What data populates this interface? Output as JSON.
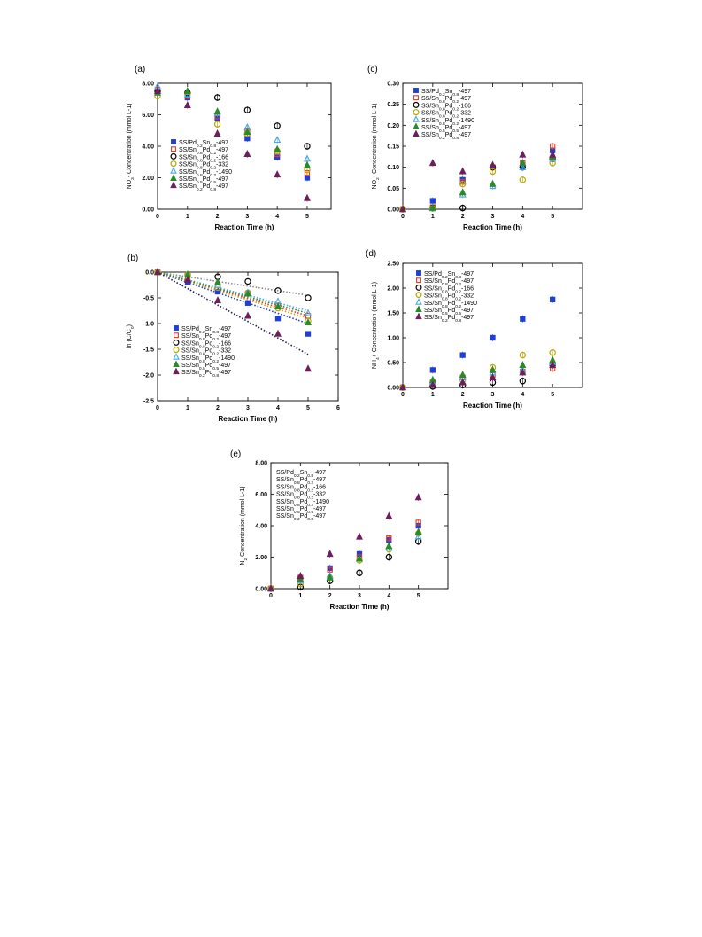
{
  "series_names": [
    "SS/Pd0.2Sn0.8-497",
    "SS/Sn0.8Pd0.2-497",
    "SS/Sn0.8Pd0.2-166",
    "SS/Sn0.8Pd0.2-332",
    "SS/Sn0.8Pd0.2-1490",
    "SS/Sn0.5Pd0.5-497",
    "SS/Sn0.2Pd0.8-497"
  ],
  "series_names_a": [
    "SS/Pd0.2Sn0.8-497",
    "SS/Sn0.8Pd0.2-497",
    "SS/Sn0.8Pd0.2-166",
    "SS/Sn0.8Pd0.2-332",
    "SS/Sn0.8Pd0.2-1490",
    "SS/Sn0.5Pd0.5-497",
    "SS/Sn0.2Pd0.8-497"
  ],
  "chart_data": [
    {
      "id": "a",
      "panel_label": "(a)",
      "type": "scatter",
      "xlabel": "Reaction Time (h)",
      "ylabel": "NO3- Concentration (mmol L-1)",
      "x": [
        0,
        1,
        2,
        3,
        4,
        5
      ],
      "xlim": [
        0,
        5.8
      ],
      "ylim": [
        0,
        8
      ],
      "xticks": [
        "0",
        "1",
        "2",
        "3",
        "4",
        "5"
      ],
      "yticks": [
        "0.00",
        "2.00",
        "4.00",
        "6.00",
        "8.00"
      ],
      "legend": "left",
      "series": [
        {
          "name": "SS/Pd0.2Sn0.8-497",
          "values": [
            7.5,
            7.1,
            5.8,
            4.5,
            3.3,
            2.0
          ]
        },
        {
          "name": "SS/Sn0.8Pd0.2-497",
          "values": [
            7.6,
            7.2,
            5.9,
            5.0,
            3.5,
            2.3
          ]
        },
        {
          "name": "SS/Sn0.8Pd0.2-166",
          "values": [
            7.5,
            7.4,
            7.1,
            6.3,
            5.3,
            4.0
          ]
        },
        {
          "name": "SS/Sn0.8Pd0.2-332",
          "values": [
            7.2,
            7.3,
            5.4,
            4.8,
            3.7,
            2.5
          ]
        },
        {
          "name": "SS/Sn0.8Pd0.2-1490",
          "values": [
            7.8,
            7.3,
            6.1,
            5.2,
            4.4,
            3.2
          ]
        },
        {
          "name": "SS/Sn0.5Pd0.5-497",
          "values": [
            7.4,
            7.5,
            6.2,
            4.9,
            3.8,
            2.8
          ]
        },
        {
          "name": "SS/Sn0.2Pd0.8-497",
          "values": [
            7.5,
            6.6,
            4.8,
            3.5,
            2.2,
            0.7
          ]
        }
      ]
    },
    {
      "id": "b",
      "panel_label": "(b)",
      "type": "scatter",
      "xlabel": "Reaction Time (h)",
      "ylabel": "ln (C/C0)",
      "x": [
        0,
        1,
        2,
        3,
        4,
        5
      ],
      "xlim": [
        0,
        6
      ],
      "ylim": [
        -2.5,
        0
      ],
      "xticks": [
        "0",
        "1",
        "2",
        "3",
        "4",
        "5",
        "6"
      ],
      "yticks": [
        "-2.5",
        "-2.0",
        "-1.5",
        "-1.0",
        "-0.5",
        "0.0"
      ],
      "legend": "left",
      "series": [
        {
          "name": "SS/Pd0.2Sn0.8-497",
          "values": [
            0,
            -0.2,
            -0.38,
            -0.6,
            -0.9,
            -1.2
          ],
          "fit_slope": -0.2
        },
        {
          "name": "SS/Sn0.8Pd0.2-497",
          "values": [
            0,
            -0.1,
            -0.25,
            -0.42,
            -0.65,
            -0.85
          ],
          "fit_slope": -0.17
        },
        {
          "name": "SS/Sn0.8Pd0.2-166",
          "values": [
            0,
            -0.05,
            -0.09,
            -0.18,
            -0.36,
            -0.5
          ],
          "fit_slope": -0.09
        },
        {
          "name": "SS/Sn0.8Pd0.2-332",
          "values": [
            0,
            -0.05,
            -0.3,
            -0.4,
            -0.7,
            -0.95
          ],
          "fit_slope": -0.18
        },
        {
          "name": "SS/Sn0.8Pd0.2-1490",
          "values": [
            0,
            -0.05,
            -0.25,
            -0.4,
            -0.57,
            -0.8
          ],
          "fit_slope": -0.15
        },
        {
          "name": "SS/Sn0.5Pd0.5-497",
          "values": [
            0,
            -0.05,
            -0.2,
            -0.42,
            -0.67,
            -0.98
          ],
          "fit_slope": -0.16
        },
        {
          "name": "SS/Sn0.2Pd0.8-497",
          "values": [
            0,
            -0.15,
            -0.55,
            -0.85,
            -1.2,
            -1.88
          ],
          "fit_slope": -0.32
        }
      ]
    },
    {
      "id": "c",
      "panel_label": "(c)",
      "type": "scatter",
      "xlabel": "Reaction Time (h)",
      "ylabel": "NO2- Concentration (mmol L-1)",
      "x": [
        0,
        1,
        2,
        3,
        4,
        5
      ],
      "xlim": [
        0,
        6
      ],
      "ylim": [
        0,
        0.3
      ],
      "xticks": [
        "0",
        "1",
        "2",
        "3",
        "4",
        "5"
      ],
      "yticks": [
        "0.00",
        "0.05",
        "0.10",
        "0.15",
        "0.20",
        "0.25",
        "0.30"
      ],
      "legend": "top-left",
      "series": [
        {
          "name": "SS/Pd0.2Sn0.8-497",
          "values": [
            0,
            0.02,
            0.07,
            0.1,
            0.1,
            0.14
          ]
        },
        {
          "name": "SS/Sn0.8Pd0.2-497",
          "values": [
            0,
            0.005,
            0.065,
            0.1,
            0.11,
            0.15
          ]
        },
        {
          "name": "SS/Sn0.8Pd0.2-166",
          "values": [
            0,
            0.003,
            0.003,
            0.1,
            0.1,
            0.12
          ]
        },
        {
          "name": "SS/Sn0.8Pd0.2-332",
          "values": [
            0,
            0.002,
            0.06,
            0.09,
            0.07,
            0.11
          ]
        },
        {
          "name": "SS/Sn0.8Pd0.2-1490",
          "values": [
            0,
            0.002,
            0.035,
            0.055,
            0.1,
            0.12
          ]
        },
        {
          "name": "SS/Sn0.5Pd0.5-497",
          "values": [
            0,
            0.003,
            0.04,
            0.06,
            0.11,
            0.125
          ]
        },
        {
          "name": "SS/Sn0.2Pd0.8-497",
          "values": [
            0,
            0.11,
            0.09,
            0.105,
            0.13,
            0.13
          ]
        }
      ]
    },
    {
      "id": "d",
      "panel_label": "(d)",
      "type": "scatter",
      "xlabel": "Reaction Time (h)",
      "ylabel": "NH4+ Concentration (mmol L-1)",
      "x": [
        0,
        1,
        2,
        3,
        4,
        5
      ],
      "xlim": [
        0,
        6
      ],
      "ylim": [
        0,
        2.5
      ],
      "xticks": [
        "0",
        "1",
        "2",
        "3",
        "4",
        "5"
      ],
      "yticks": [
        "0.00",
        "0.50",
        "1.00",
        "1.50",
        "2.00",
        "2.50"
      ],
      "legend": "top-left",
      "series": [
        {
          "name": "SS/Pd0.2Sn0.8-497",
          "values": [
            0,
            0.35,
            0.65,
            1.0,
            1.38,
            1.77
          ]
        },
        {
          "name": "SS/Sn0.8Pd0.2-497",
          "values": [
            0,
            0.1,
            0.2,
            0.25,
            0.32,
            0.38
          ]
        },
        {
          "name": "SS/Sn0.8Pd0.2-166",
          "values": [
            0,
            0.02,
            0.05,
            0.1,
            0.13,
            0.45
          ]
        },
        {
          "name": "SS/Sn0.8Pd0.2-332",
          "values": [
            0,
            0.08,
            0.15,
            0.4,
            0.65,
            0.7
          ]
        },
        {
          "name": "SS/Sn0.8Pd0.2-1490",
          "values": [
            0,
            0.1,
            0.2,
            0.3,
            0.35,
            0.5
          ]
        },
        {
          "name": "SS/Sn0.5Pd0.5-497",
          "values": [
            0,
            0.15,
            0.25,
            0.35,
            0.45,
            0.55
          ]
        },
        {
          "name": "SS/Sn0.2Pd0.8-497",
          "values": [
            0,
            0.05,
            0.1,
            0.2,
            0.3,
            0.45
          ]
        }
      ]
    },
    {
      "id": "e",
      "panel_label": "(e)",
      "type": "scatter",
      "xlabel": "Reaction Time (h)",
      "ylabel": "N2 Concentration (mmol L-1)",
      "x": [
        0,
        1,
        2,
        3,
        4,
        5
      ],
      "xlim": [
        0,
        6
      ],
      "ylim": [
        0,
        8
      ],
      "xticks": [
        "0",
        "1",
        "2",
        "3",
        "4",
        "5"
      ],
      "yticks": [
        "0.00",
        "2.00",
        "4.00",
        "6.00",
        "8.00"
      ],
      "legend": "top-left",
      "series": [
        {
          "name": "SS/Pd0.2Sn0.8-497",
          "values": [
            0,
            0.6,
            1.3,
            2.2,
            3.1,
            4.0
          ]
        },
        {
          "name": "SS/Sn0.8Pd0.2-497",
          "values": [
            0,
            0.7,
            1.2,
            2.0,
            3.2,
            4.2
          ]
        },
        {
          "name": "SS/Sn0.8Pd0.2-166",
          "values": [
            0,
            0.1,
            0.5,
            1.0,
            2.0,
            3.0
          ]
        },
        {
          "name": "SS/Sn0.8Pd0.2-332",
          "values": [
            0,
            0.3,
            0.7,
            1.8,
            2.5,
            3.5
          ]
        },
        {
          "name": "SS/Sn0.8Pd0.2-1490",
          "values": [
            0,
            0.5,
            0.8,
            1.9,
            2.6,
            3.3
          ]
        },
        {
          "name": "SS/Sn0.5Pd0.5-497",
          "values": [
            0,
            0.6,
            0.7,
            1.9,
            2.7,
            3.6
          ]
        },
        {
          "name": "SS/Sn0.2Pd0.8-497",
          "values": [
            0,
            0.8,
            2.2,
            3.3,
            4.6,
            5.8
          ]
        }
      ]
    }
  ],
  "colors": [
    "#1f3fd6",
    "#e03a2a",
    "#000000",
    "#b8a800",
    "#4aa8e8",
    "#2a8a2a",
    "#6e1e5a"
  ],
  "markers": [
    "square",
    "square-open",
    "circle-open",
    "circle-open",
    "triangle-open",
    "triangle",
    "triangle"
  ],
  "fit_colors": [
    "#1f3fd6",
    "#e03a2a",
    "#888888",
    "#d4a017",
    "#4aa8e8",
    "#2a8a2a",
    "#1a1a5a"
  ]
}
